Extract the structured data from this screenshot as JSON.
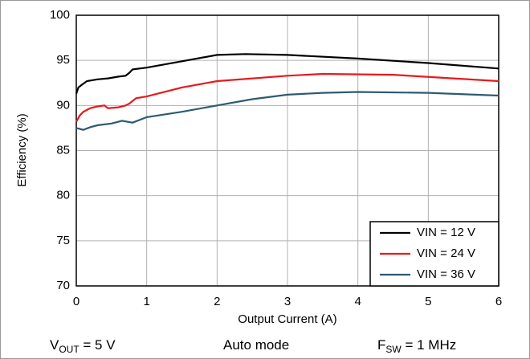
{
  "chart_data": {
    "type": "line",
    "x_label": "Output Current (A)",
    "y_label": "Efficiency (%)",
    "xlim": [
      0,
      6
    ],
    "xticks": [
      0,
      1,
      2,
      3,
      4,
      5,
      6
    ],
    "ylim": [
      70,
      100
    ],
    "yticks": [
      70,
      75,
      80,
      85,
      90,
      95,
      100
    ],
    "grid": true,
    "legend": "lower right",
    "series": [
      {
        "name": "VIN = 12 V",
        "color": "#000000",
        "x": [
          0,
          0.03,
          0.08,
          0.15,
          0.3,
          0.45,
          0.6,
          0.7,
          0.75,
          0.8,
          1.0,
          1.5,
          2.0,
          2.4,
          3.0,
          4.0,
          5.0,
          6.0
        ],
        "values": [
          91.3,
          92.0,
          92.3,
          92.7,
          92.9,
          93.0,
          93.2,
          93.3,
          93.6,
          94.0,
          94.2,
          94.9,
          95.6,
          95.7,
          95.6,
          95.2,
          94.7,
          94.1
        ]
      },
      {
        "name": "VIN = 24 V",
        "color": "#e8191c",
        "x": [
          0,
          0.05,
          0.1,
          0.2,
          0.3,
          0.4,
          0.45,
          0.6,
          0.7,
          0.75,
          0.85,
          1.0,
          1.5,
          2.0,
          3.0,
          3.5,
          4.5,
          6.0
        ],
        "values": [
          88.2,
          88.9,
          89.3,
          89.7,
          89.9,
          90.0,
          89.7,
          89.8,
          90.0,
          90.2,
          90.8,
          91.0,
          92.0,
          92.7,
          93.3,
          93.5,
          93.4,
          92.7
        ]
      },
      {
        "name": "VIN = 36 V",
        "color": "#2e5a73",
        "x": [
          0,
          0.05,
          0.1,
          0.2,
          0.3,
          0.5,
          0.65,
          0.8,
          1.0,
          1.5,
          2.0,
          2.5,
          3.0,
          3.5,
          4.0,
          5.0,
          6.0
        ],
        "values": [
          87.5,
          87.4,
          87.3,
          87.6,
          87.8,
          88.0,
          88.3,
          88.1,
          88.7,
          89.3,
          90.0,
          90.7,
          91.2,
          91.4,
          91.5,
          91.4,
          91.1
        ]
      }
    ]
  },
  "footer": [
    {
      "symbol": "V",
      "subscript": "OUT",
      "text": " = 5 V"
    },
    {
      "text": "Auto mode"
    },
    {
      "symbol": "F",
      "subscript": "SW",
      "text": " = 1 MHz"
    }
  ]
}
